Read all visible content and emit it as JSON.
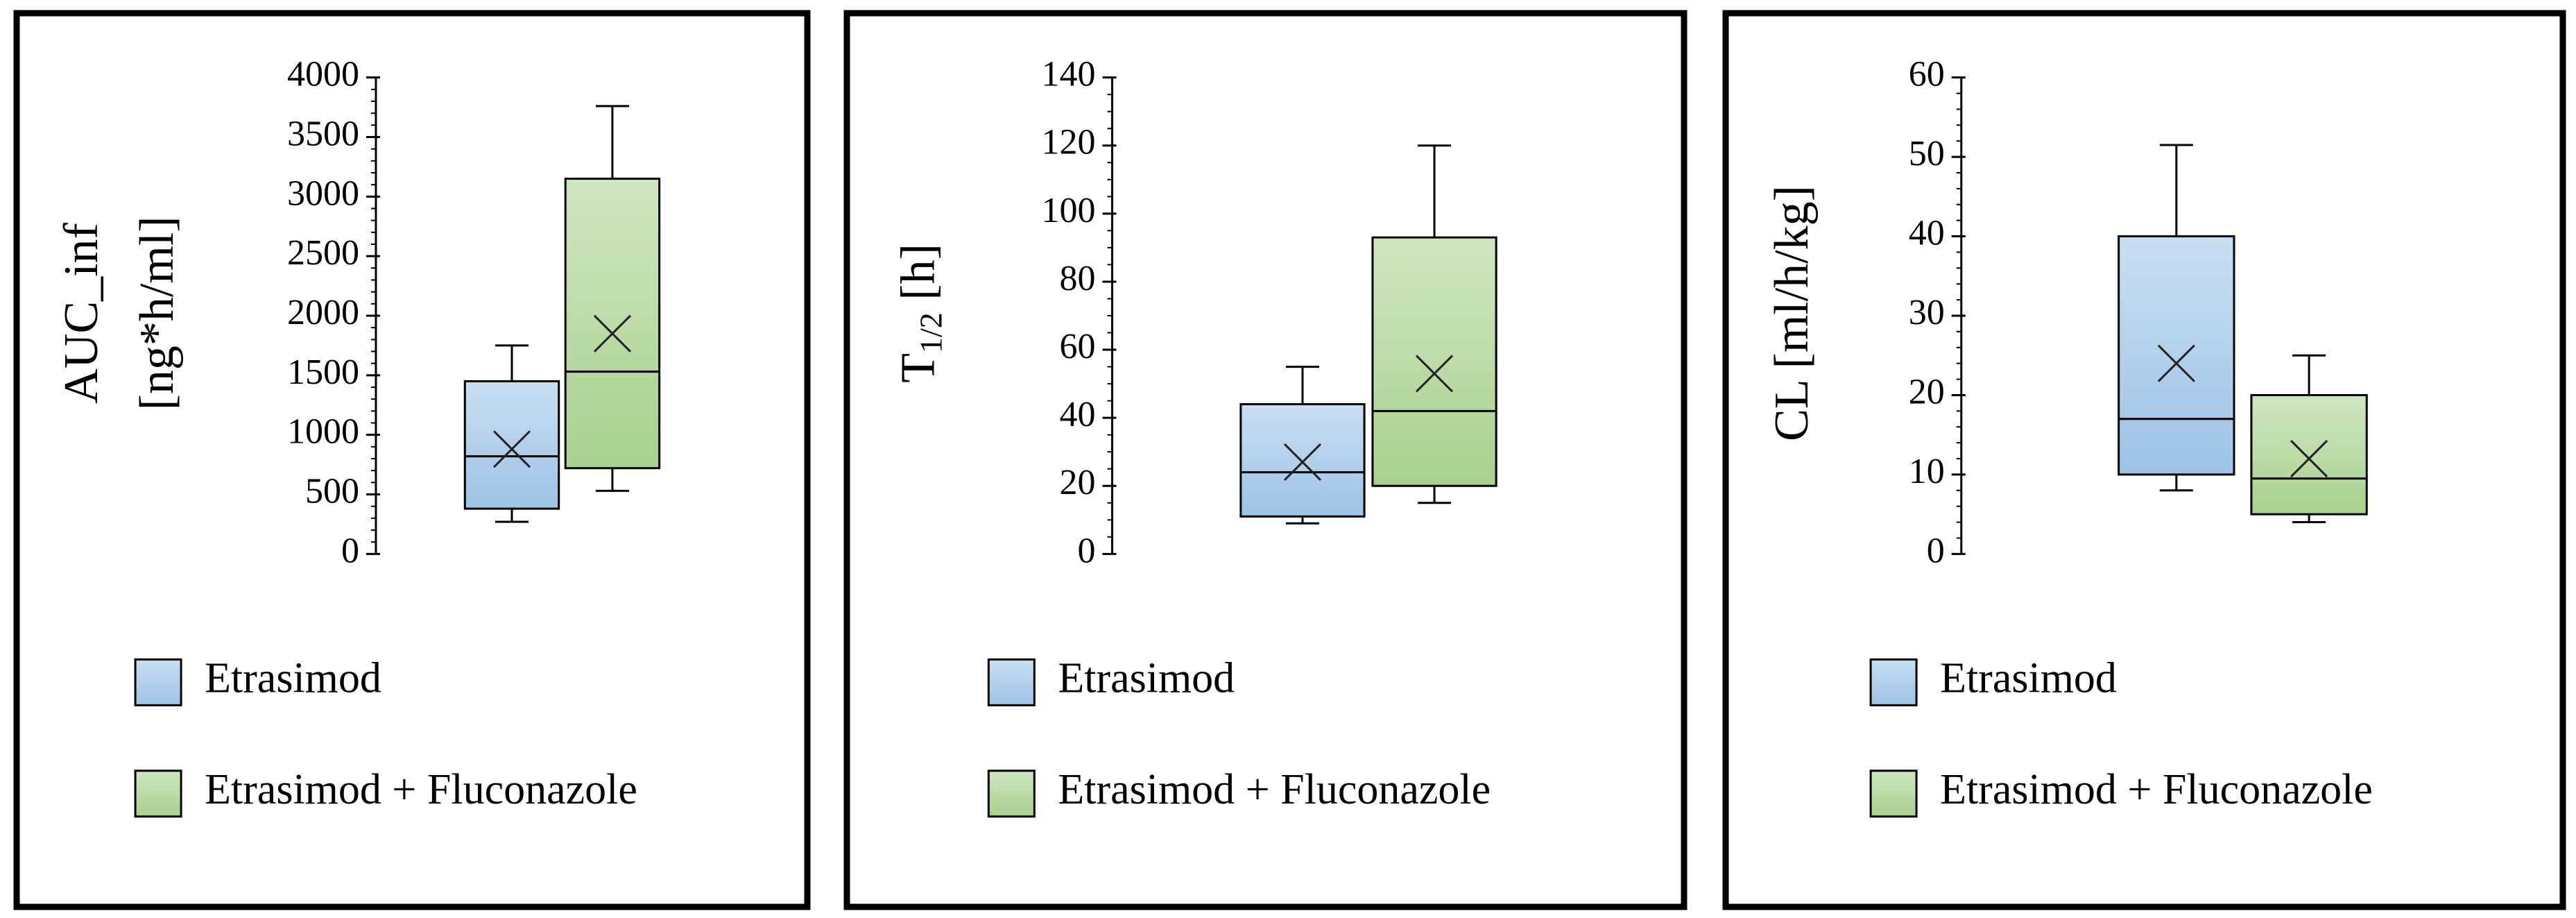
{
  "chart_data": [
    {
      "type": "box",
      "ylabel_lines": [
        "AUC_inf",
        "[ng*h/ml]"
      ],
      "ylim": [
        0,
        4000
      ],
      "yticks": [
        0,
        500,
        1000,
        1500,
        2000,
        2500,
        3000,
        3500,
        4000
      ],
      "minor_ticks_per_major": 5,
      "series": [
        {
          "name": "Etrasimod",
          "color": "#9dc3e6",
          "min": 270,
          "q1": 380,
          "median": 820,
          "q3": 1450,
          "max": 1750,
          "mean": 880
        },
        {
          "name": "Etrasimod + Fluconazole",
          "color": "#a9d18e",
          "min": 530,
          "q1": 720,
          "median": 1530,
          "q3": 3150,
          "max": 3760,
          "mean": 1850
        }
      ]
    },
    {
      "type": "box",
      "ylabel": "T",
      "ylabel_subscript": "1/2",
      "ylabel_suffix": " [h]",
      "ylim": [
        0,
        140
      ],
      "yticks": [
        0,
        20,
        40,
        60,
        80,
        100,
        120,
        140
      ],
      "minor_ticks_per_major": 4,
      "series": [
        {
          "name": "Etrasimod",
          "color": "#9dc3e6",
          "min": 9,
          "q1": 11,
          "median": 24,
          "q3": 44,
          "max": 55,
          "mean": 27
        },
        {
          "name": "Etrasimod + Fluconazole",
          "color": "#a9d18e",
          "min": 15,
          "q1": 20,
          "median": 42,
          "q3": 93,
          "max": 120,
          "mean": 53
        }
      ]
    },
    {
      "type": "box",
      "ylabel": "CL [ml/h/kg]",
      "ylim": [
        0,
        60
      ],
      "yticks": [
        0,
        10,
        20,
        30,
        40,
        50,
        60
      ],
      "minor_ticks_per_major": 5,
      "series": [
        {
          "name": "Etrasimod",
          "color": "#9dc3e6",
          "min": 8,
          "q1": 10,
          "median": 17,
          "q3": 40,
          "max": 51.5,
          "mean": 24
        },
        {
          "name": "Etrasimod + Fluconazole",
          "color": "#a9d18e",
          "min": 4,
          "q1": 5,
          "median": 9.5,
          "q3": 20,
          "max": 25,
          "mean": 12
        }
      ]
    }
  ]
}
